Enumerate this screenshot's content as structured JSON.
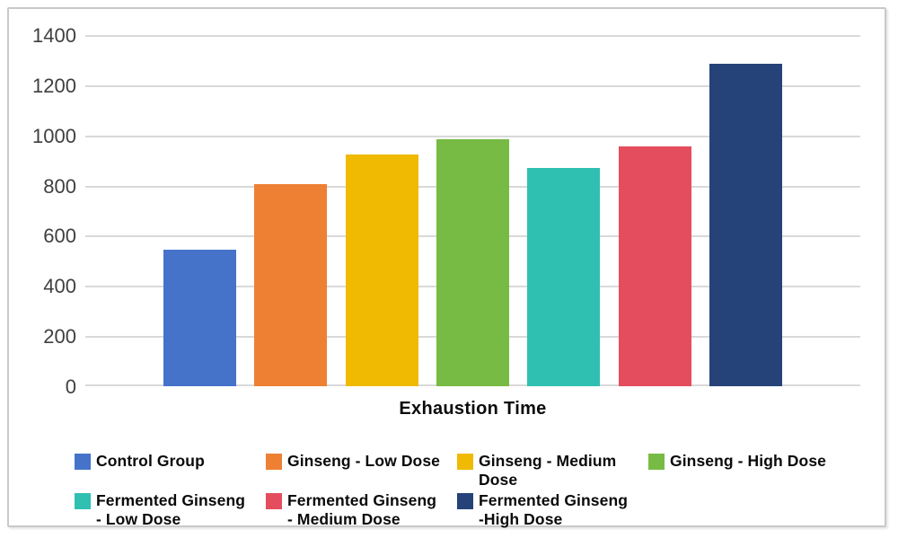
{
  "chart_data": {
    "type": "bar",
    "title": "",
    "xlabel": "Exhaustion Time",
    "ylabel": "",
    "ylim": [
      0,
      1400
    ],
    "ytick_step": 200,
    "yticks": [
      1400,
      1200,
      1000,
      800,
      600,
      400,
      200,
      0
    ],
    "grid": true,
    "legend_position": "bottom",
    "categories": [
      "Control Group",
      "Ginseng - Low Dose",
      "Ginseng - Medium Dose",
      "Ginseng - High Dose",
      "Fermented Ginseng - Low Dose",
      "Fermented Ginseng - Medium Dose",
      "Fermented Ginseng - High Dose"
    ],
    "values": [
      545,
      805,
      925,
      985,
      870,
      955,
      1285
    ],
    "colors": [
      "#4573CA",
      "#EE8033",
      "#F0BA02",
      "#77BB44",
      "#2FC0B2",
      "#E44D5E",
      "#254379"
    ],
    "legend_labels_display": [
      "Control Group",
      "Ginseng - Low Dose",
      "Ginseng - Medium\nDose",
      "Ginseng - High Dose",
      "Fermented Ginseng\n - Low Dose",
      "Fermented Ginseng\n - Medium Dose",
      "Fermented Ginseng\n-High Dose"
    ]
  },
  "styles": {
    "gridline_color": "#d9d9d9",
    "tick_label_color": "#3f3f3f",
    "text_color": "#0a0a0a",
    "frame_border_color": "#c9c9c9",
    "background_color": "#ffffff"
  }
}
